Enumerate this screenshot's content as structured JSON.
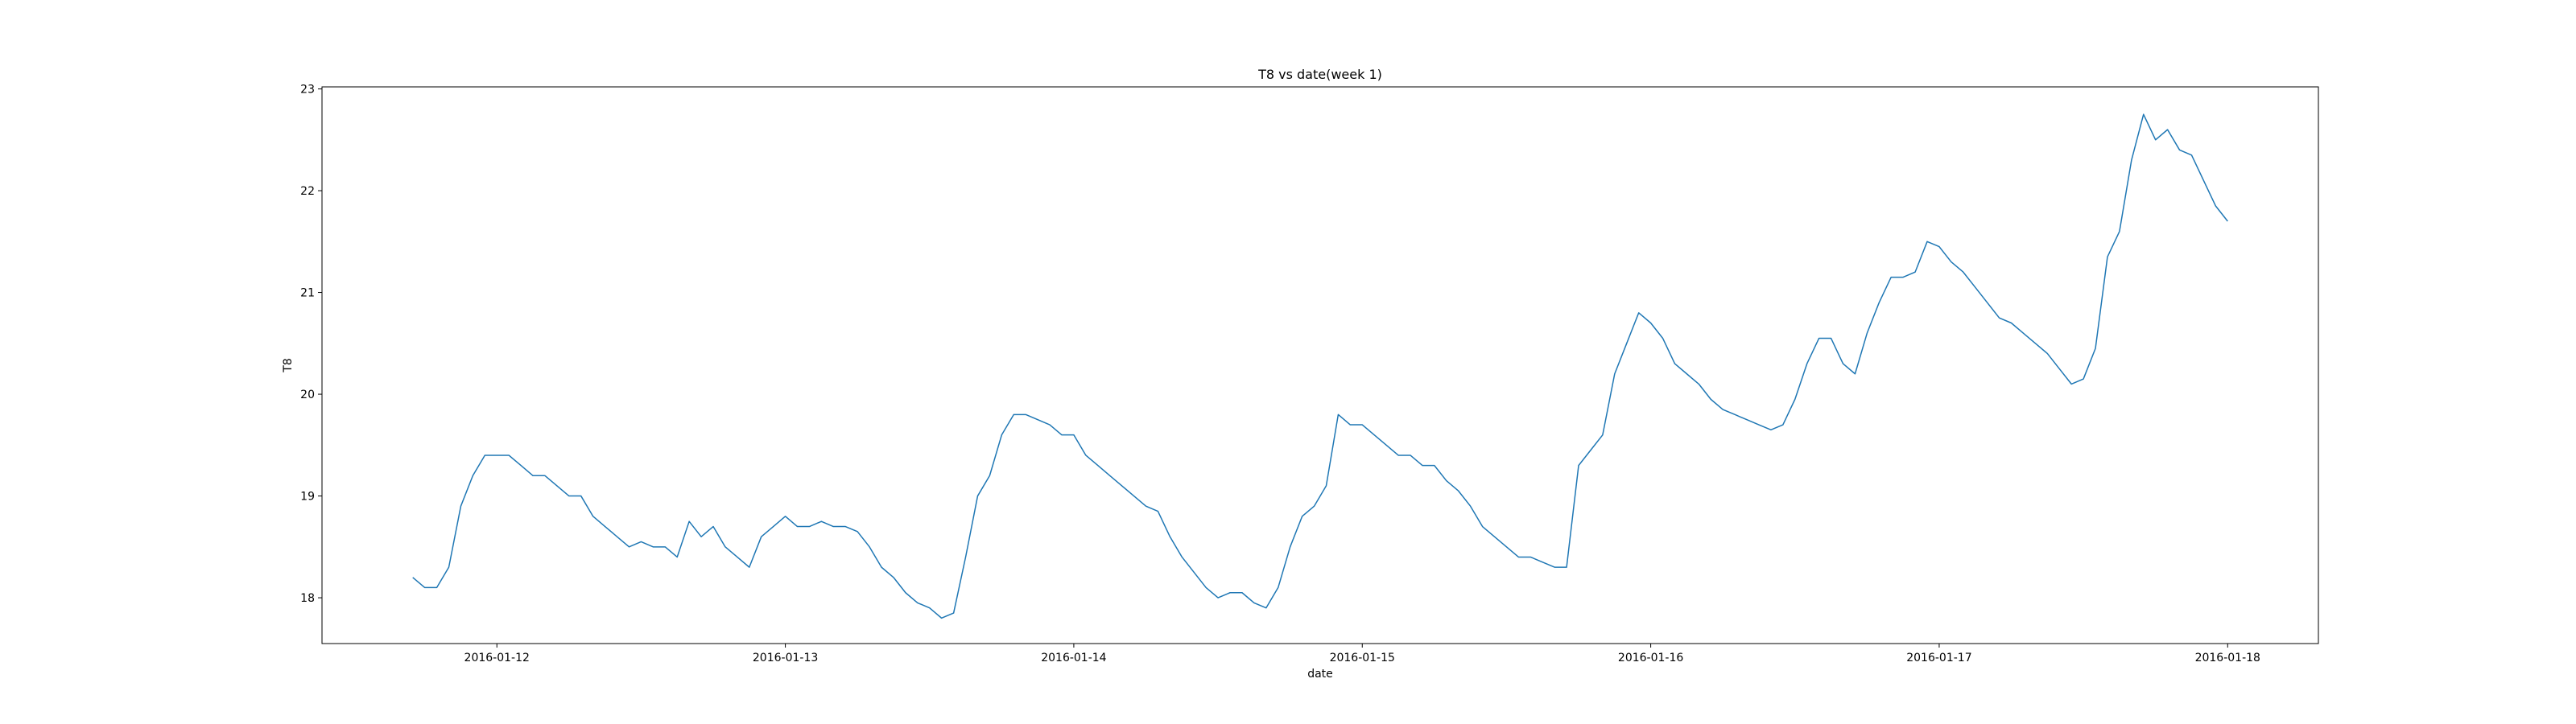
{
  "chart_data": {
    "type": "line",
    "title": "T8 vs date(week 1)",
    "xlabel": "date",
    "ylabel": "T8",
    "color": "#1f77b4",
    "x": [
      "2016-01-11 17:00",
      "2016-01-11 18:00",
      "2016-01-11 19:00",
      "2016-01-11 20:00",
      "2016-01-11 21:00",
      "2016-01-11 22:00",
      "2016-01-11 23:00",
      "2016-01-12 00:00",
      "2016-01-12 01:00",
      "2016-01-12 02:00",
      "2016-01-12 03:00",
      "2016-01-12 04:00",
      "2016-01-12 05:00",
      "2016-01-12 06:00",
      "2016-01-12 07:00",
      "2016-01-12 08:00",
      "2016-01-12 09:00",
      "2016-01-12 10:00",
      "2016-01-12 11:00",
      "2016-01-12 12:00",
      "2016-01-12 13:00",
      "2016-01-12 14:00",
      "2016-01-12 15:00",
      "2016-01-12 16:00",
      "2016-01-12 17:00",
      "2016-01-12 18:00",
      "2016-01-12 19:00",
      "2016-01-12 20:00",
      "2016-01-12 21:00",
      "2016-01-12 22:00",
      "2016-01-12 23:00",
      "2016-01-13 00:00",
      "2016-01-13 01:00",
      "2016-01-13 02:00",
      "2016-01-13 03:00",
      "2016-01-13 04:00",
      "2016-01-13 05:00",
      "2016-01-13 06:00",
      "2016-01-13 07:00",
      "2016-01-13 08:00",
      "2016-01-13 09:00",
      "2016-01-13 10:00",
      "2016-01-13 11:00",
      "2016-01-13 12:00",
      "2016-01-13 13:00",
      "2016-01-13 14:00",
      "2016-01-13 15:00",
      "2016-01-13 16:00",
      "2016-01-13 17:00",
      "2016-01-13 18:00",
      "2016-01-13 19:00",
      "2016-01-13 20:00",
      "2016-01-13 21:00",
      "2016-01-13 22:00",
      "2016-01-13 23:00",
      "2016-01-14 00:00",
      "2016-01-14 01:00",
      "2016-01-14 02:00",
      "2016-01-14 03:00",
      "2016-01-14 04:00",
      "2016-01-14 05:00",
      "2016-01-14 06:00",
      "2016-01-14 07:00",
      "2016-01-14 08:00",
      "2016-01-14 09:00",
      "2016-01-14 10:00",
      "2016-01-14 11:00",
      "2016-01-14 12:00",
      "2016-01-14 13:00",
      "2016-01-14 14:00",
      "2016-01-14 15:00",
      "2016-01-14 16:00",
      "2016-01-14 17:00",
      "2016-01-14 18:00",
      "2016-01-14 19:00",
      "2016-01-14 20:00",
      "2016-01-14 21:00",
      "2016-01-14 22:00",
      "2016-01-14 23:00",
      "2016-01-15 00:00",
      "2016-01-15 01:00",
      "2016-01-15 02:00",
      "2016-01-15 03:00",
      "2016-01-15 04:00",
      "2016-01-15 05:00",
      "2016-01-15 06:00",
      "2016-01-15 07:00",
      "2016-01-15 08:00",
      "2016-01-15 09:00",
      "2016-01-15 10:00",
      "2016-01-15 11:00",
      "2016-01-15 12:00",
      "2016-01-15 13:00",
      "2016-01-15 14:00",
      "2016-01-15 15:00",
      "2016-01-15 16:00",
      "2016-01-15 17:00",
      "2016-01-15 18:00",
      "2016-01-15 19:00",
      "2016-01-15 20:00",
      "2016-01-15 21:00",
      "2016-01-15 22:00",
      "2016-01-15 23:00",
      "2016-01-16 00:00",
      "2016-01-16 01:00",
      "2016-01-16 02:00",
      "2016-01-16 03:00",
      "2016-01-16 04:00",
      "2016-01-16 05:00",
      "2016-01-16 06:00",
      "2016-01-16 07:00",
      "2016-01-16 08:00",
      "2016-01-16 09:00",
      "2016-01-16 10:00",
      "2016-01-16 11:00",
      "2016-01-16 12:00",
      "2016-01-16 13:00",
      "2016-01-16 14:00",
      "2016-01-16 15:00",
      "2016-01-16 16:00",
      "2016-01-16 17:00",
      "2016-01-16 18:00",
      "2016-01-16 19:00",
      "2016-01-16 20:00",
      "2016-01-16 21:00",
      "2016-01-16 22:00",
      "2016-01-16 23:00",
      "2016-01-17 00:00",
      "2016-01-17 01:00",
      "2016-01-17 02:00",
      "2016-01-17 03:00",
      "2016-01-17 04:00",
      "2016-01-17 05:00",
      "2016-01-17 06:00",
      "2016-01-17 07:00",
      "2016-01-17 08:00",
      "2016-01-17 09:00",
      "2016-01-17 10:00",
      "2016-01-17 11:00",
      "2016-01-17 12:00",
      "2016-01-17 13:00",
      "2016-01-17 14:00",
      "2016-01-17 15:00",
      "2016-01-17 16:00",
      "2016-01-17 17:00",
      "2016-01-17 18:00",
      "2016-01-17 19:00",
      "2016-01-17 20:00",
      "2016-01-17 21:00",
      "2016-01-17 22:00",
      "2016-01-17 23:00",
      "2016-01-18 00:00"
    ],
    "values": [
      18.2,
      18.1,
      18.1,
      18.3,
      18.9,
      19.2,
      19.4,
      19.4,
      19.4,
      19.3,
      19.2,
      19.2,
      19.1,
      19.0,
      19.0,
      18.8,
      18.7,
      18.6,
      18.5,
      18.55,
      18.5,
      18.5,
      18.4,
      18.75,
      18.6,
      18.7,
      18.5,
      18.4,
      18.3,
      18.6,
      18.7,
      18.8,
      18.7,
      18.7,
      18.75,
      18.7,
      18.7,
      18.65,
      18.5,
      18.3,
      18.2,
      18.05,
      17.95,
      17.9,
      17.8,
      17.85,
      18.4,
      19.0,
      19.2,
      19.6,
      19.8,
      19.8,
      19.75,
      19.7,
      19.6,
      19.6,
      19.4,
      19.3,
      19.2,
      19.1,
      19.0,
      18.9,
      18.85,
      18.6,
      18.4,
      18.25,
      18.1,
      18.0,
      18.05,
      18.05,
      17.95,
      17.9,
      18.1,
      18.5,
      18.8,
      18.9,
      19.1,
      19.8,
      19.7,
      19.7,
      19.6,
      19.5,
      19.4,
      19.4,
      19.3,
      19.3,
      19.15,
      19.05,
      18.9,
      18.7,
      18.6,
      18.5,
      18.4,
      18.4,
      18.35,
      18.3,
      18.3,
      19.3,
      19.45,
      19.6,
      20.2,
      20.5,
      20.8,
      20.7,
      20.55,
      20.3,
      20.2,
      20.1,
      19.95,
      19.85,
      19.8,
      19.75,
      19.7,
      19.65,
      19.7,
      19.95,
      20.3,
      20.55,
      20.55,
      20.3,
      20.2,
      20.6,
      20.9,
      21.15,
      21.15,
      21.2,
      21.5,
      21.45,
      21.3,
      21.2,
      21.05,
      20.9,
      20.75,
      20.7,
      20.6,
      20.5,
      20.4,
      20.25,
      20.1,
      20.15,
      20.45,
      21.35,
      21.6,
      22.3,
      22.75,
      22.5,
      22.6,
      22.4,
      22.35,
      22.1,
      21.85,
      21.7
    ],
    "xlim": [
      "2016-01-11 09:27",
      "2016-01-18 07:33"
    ],
    "xticks": [
      "2016-01-12",
      "2016-01-13",
      "2016-01-14",
      "2016-01-15",
      "2016-01-16",
      "2016-01-17",
      "2016-01-18"
    ],
    "ylim": [
      17.55,
      23.02
    ],
    "yticks": [
      18,
      19,
      20,
      21,
      22,
      23
    ]
  }
}
